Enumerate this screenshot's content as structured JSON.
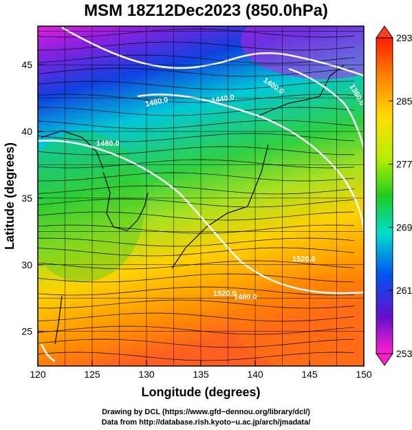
{
  "title": "MSM 18Z12Dec2023 (850.0hPa)",
  "xlabel": "Longitude (degrees)",
  "ylabel": "Latitude  (degrees)",
  "x_ticks": [
    "120",
    "125",
    "130",
    "135",
    "140",
    "145",
    "150"
  ],
  "y_ticks": [
    "25",
    "30",
    "35",
    "40",
    "45"
  ],
  "colorbar": {
    "ticks": [
      "293",
      "285",
      "277",
      "269",
      "261",
      "253"
    ],
    "colors": {
      "warm": "#ff3300",
      "orange": "#ff9900",
      "yellow": "#eeee00",
      "green": "#22cc00",
      "cyan": "#00ddcc",
      "blue": "#0033dd",
      "purple": "#8800cc",
      "magenta": "#ff00cc"
    }
  },
  "contour_labels": [
    "1480.0",
    "1440.0",
    "1400.0",
    "1360.0",
    "1480.0",
    "1480.0",
    "1520.0",
    "1520.0"
  ],
  "footer": {
    "line1": "Drawing by DCL (https://www.gfd−dennou.org/library/dcl/)",
    "line2": "Data from http://database.rish.kyoto−u.ac.jp/arch/jmadata/"
  }
}
